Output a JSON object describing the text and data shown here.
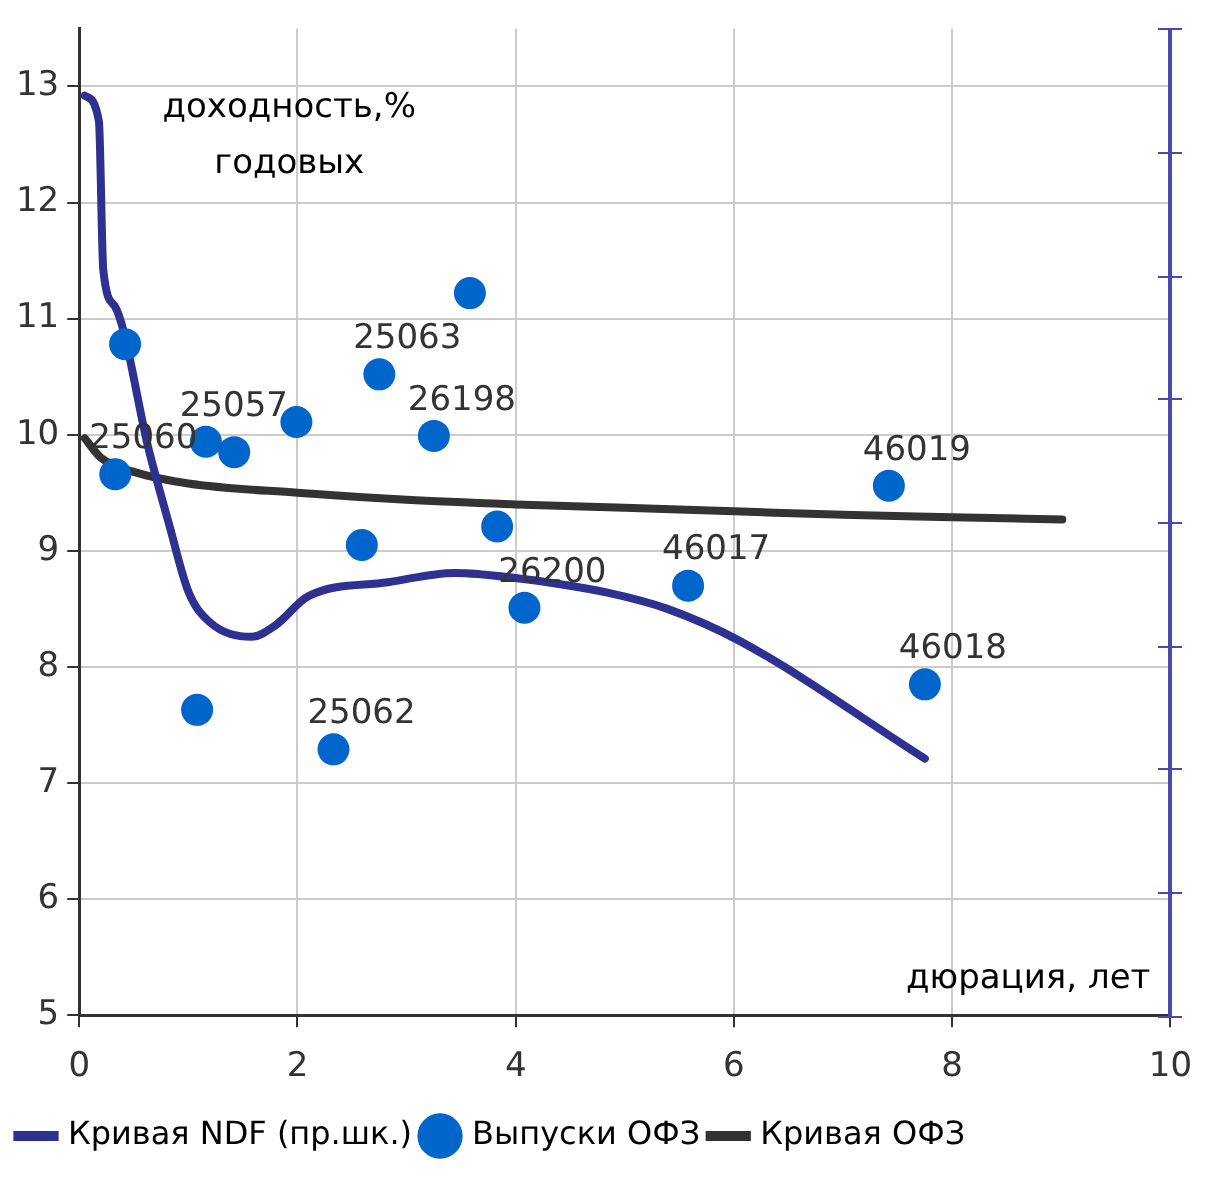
{
  "chart_data": {
    "type": "scatter",
    "xlabel": "дюрация, лет",
    "ylabel": "доходность,% годовых",
    "xlim": [
      0,
      10
    ],
    "xticks": [
      0,
      2,
      4,
      6,
      8,
      10
    ],
    "ylim": [
      5,
      13.5
    ],
    "yticks": [
      5,
      6,
      7,
      8,
      9,
      10,
      11,
      12,
      13
    ],
    "grid": true,
    "legend": "bottom",
    "series": [
      {
        "name": "Кривая NDF (пр.шк.)",
        "type": "line",
        "color": "#2e3192",
        "x": [
          0.05,
          0.18,
          0.22,
          0.33,
          0.64,
          0.82,
          1.0,
          1.19,
          1.58,
          1.8,
          2.1,
          2.83,
          3.44,
          4.05,
          4.84,
          5.39,
          6.06,
          7.75
        ],
        "values": [
          12.92,
          12.7,
          11.42,
          11.1,
          9.86,
          9.24,
          8.65,
          8.39,
          8.26,
          8.36,
          8.61,
          8.73,
          8.81,
          8.76,
          8.64,
          8.5,
          8.22,
          7.21
        ]
      },
      {
        "name": "Выпуски ОФЗ",
        "marker": "circle",
        "color": "#0066cc",
        "x": [
          0.42,
          0.33,
          1.16,
          1.42,
          1.99,
          2.75,
          3.58,
          3.25,
          2.59,
          3.83,
          4.08,
          1.08,
          2.33,
          5.58,
          7.42,
          7.75
        ],
        "values": [
          10.78,
          9.66,
          9.94,
          9.85,
          10.11,
          10.52,
          11.22,
          9.99,
          9.05,
          9.21,
          8.51,
          7.63,
          7.29,
          8.7,
          9.56,
          7.85
        ]
      },
      {
        "name": "Кривая ОФЗ",
        "type": "line",
        "color": "#333333",
        "x": [
          0.05,
          0.2,
          0.5,
          1,
          2,
          3,
          4,
          5,
          6,
          7,
          8,
          9.01
        ],
        "values": [
          9.97,
          9.8,
          9.68,
          9.58,
          9.5,
          9.44,
          9.4,
          9.37,
          9.34,
          9.31,
          9.29,
          9.27
        ]
      }
    ],
    "annotations": [
      {
        "text": "25060",
        "x": 0.33,
        "y": 9.66
      },
      {
        "text": "25057",
        "x": 1.16,
        "y": 9.94
      },
      {
        "text": "25063",
        "x": 2.75,
        "y": 10.52
      },
      {
        "text": "26198",
        "x": 3.25,
        "y": 9.99
      },
      {
        "text": "26200",
        "x": 4.08,
        "y": 8.51
      },
      {
        "text": "25062",
        "x": 2.33,
        "y": 7.29
      },
      {
        "text": "46017",
        "x": 5.58,
        "y": 8.7
      },
      {
        "text": "46019",
        "x": 7.42,
        "y": 9.56
      },
      {
        "text": "46018",
        "x": 7.75,
        "y": 7.85
      }
    ]
  }
}
